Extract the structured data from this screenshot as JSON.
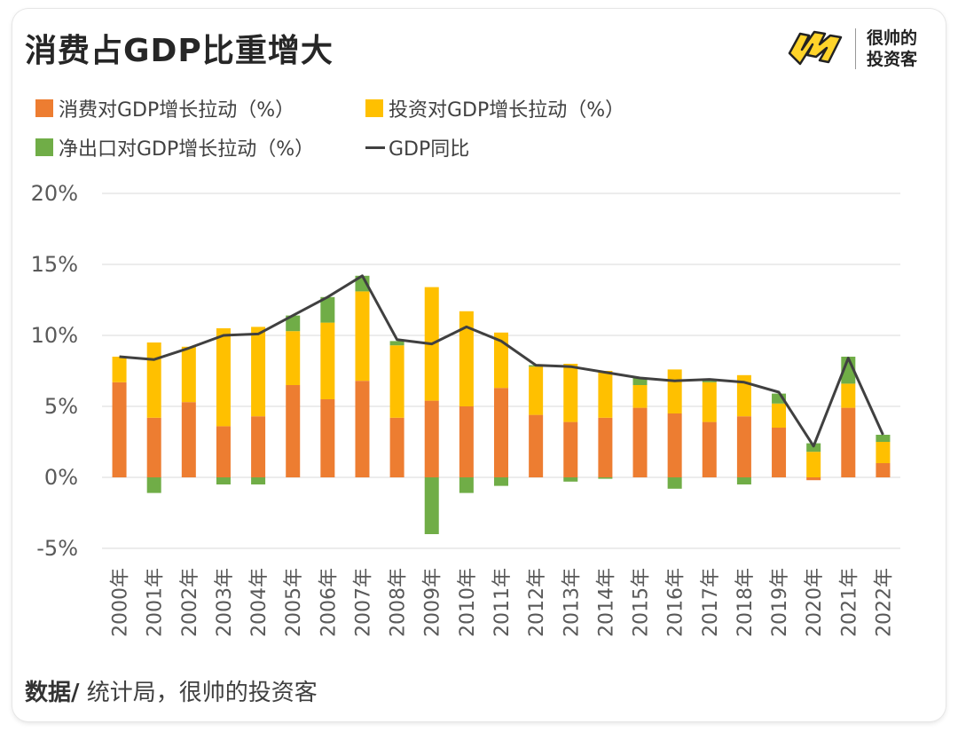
{
  "title": "消费占GDP比重增大",
  "brand": {
    "line1": "很帅的",
    "line2": "投资客",
    "logo_icon": "ym-logo-icon"
  },
  "source": {
    "label": "数据/",
    "text": " 统计局，很帅的投资客"
  },
  "colors": {
    "consumption": "#ED7D31",
    "investment": "#FFC000",
    "net_export": "#70AD47",
    "gdp": "#404040",
    "grid": "#d9d9d9"
  },
  "chart_data": {
    "type": "bar",
    "stacked": true,
    "categories": [
      "2000年",
      "2001年",
      "2002年",
      "2003年",
      "2004年",
      "2005年",
      "2006年",
      "2007年",
      "2008年",
      "2009年",
      "2010年",
      "2011年",
      "2012年",
      "2013年",
      "2014年",
      "2015年",
      "2016年",
      "2017年",
      "2018年",
      "2019年",
      "2020年",
      "2021年",
      "2022年"
    ],
    "series": [
      {
        "name": "消费对GDP增长拉动（%）",
        "kind": "bar",
        "color": "#ED7D31",
        "values": [
          6.7,
          4.2,
          5.3,
          3.6,
          4.3,
          6.5,
          5.5,
          6.8,
          4.2,
          5.4,
          5.0,
          6.3,
          4.4,
          3.9,
          4.2,
          4.9,
          4.5,
          3.9,
          4.3,
          3.5,
          -0.2,
          4.9,
          1.0
        ]
      },
      {
        "name": "投资对GDP增长拉动（%）",
        "kind": "bar",
        "color": "#FFC000",
        "values": [
          1.8,
          5.3,
          3.9,
          6.9,
          6.3,
          3.8,
          5.4,
          6.3,
          5.1,
          8.0,
          6.7,
          3.9,
          3.4,
          4.1,
          3.3,
          1.6,
          3.1,
          2.8,
          2.9,
          1.7,
          1.8,
          1.7,
          1.5
        ]
      },
      {
        "name": "净出口对GDP增长拉动（%）",
        "kind": "bar",
        "color": "#70AD47",
        "values": [
          0.0,
          -1.1,
          0.0,
          -0.5,
          -0.5,
          1.1,
          1.8,
          1.1,
          0.3,
          -4.0,
          -1.1,
          -0.6,
          0.1,
          -0.3,
          -0.1,
          0.5,
          -0.8,
          0.2,
          -0.5,
          0.7,
          0.6,
          1.9,
          0.5
        ]
      },
      {
        "name": "GDP同比",
        "kind": "line",
        "color": "#404040",
        "values": [
          8.5,
          8.3,
          9.1,
          10.0,
          10.1,
          11.4,
          12.7,
          14.2,
          9.7,
          9.4,
          10.6,
          9.6,
          7.9,
          7.8,
          7.4,
          7.0,
          6.8,
          6.9,
          6.7,
          6.0,
          2.2,
          8.4,
          3.0
        ]
      }
    ],
    "ylim": [
      -5,
      20
    ],
    "yticks": [
      20,
      15,
      10,
      5,
      0,
      -5
    ],
    "ytick_labels": [
      "20%",
      "15%",
      "10%",
      "5%",
      "0%",
      "-5%"
    ],
    "grid": true,
    "legend_position": "top-left"
  }
}
